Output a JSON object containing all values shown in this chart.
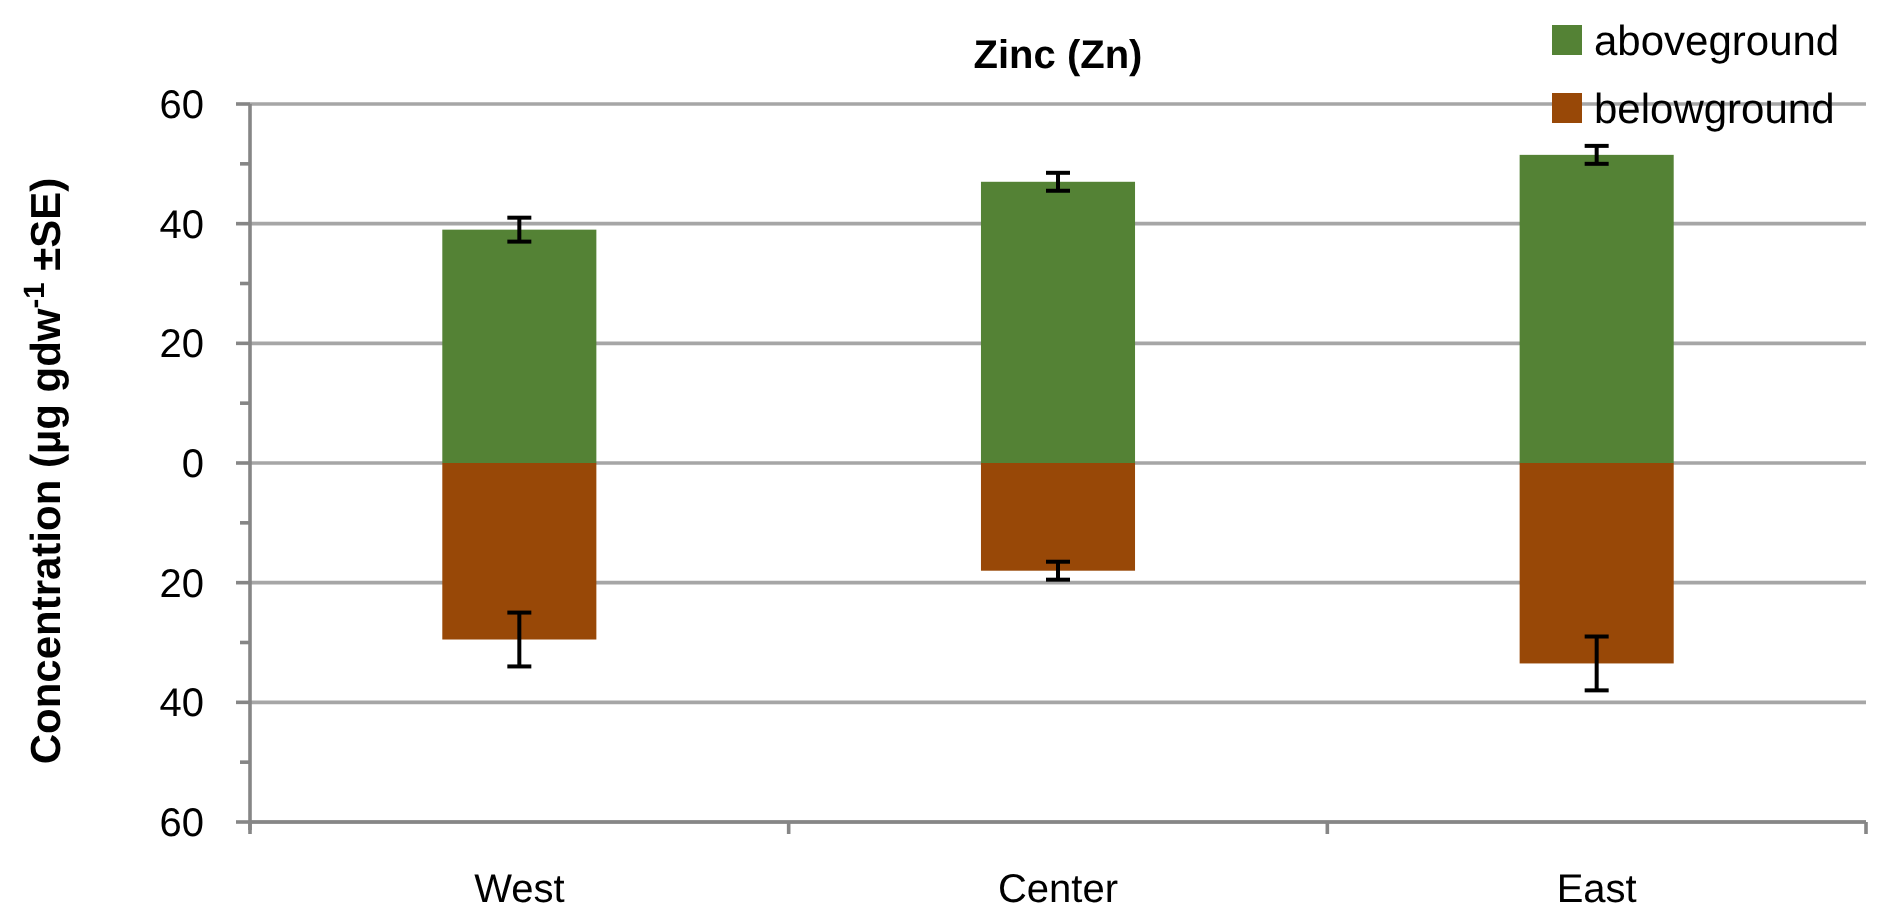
{
  "chart_data": {
    "type": "bar",
    "title": "Zinc (Zn)",
    "ylabel": "Concentration (µg gdw$^{-1}$ ±SE)",
    "categories": [
      "West",
      "Center",
      "East"
    ],
    "series": [
      {
        "name": "aboveground",
        "color": "#548235",
        "values": [
          39,
          47,
          51.5
        ],
        "errors": [
          2,
          1.5,
          1.5
        ]
      },
      {
        "name": "belowground",
        "color": "#984807",
        "values": [
          -29.5,
          -18,
          -33.5
        ],
        "errors": [
          4.5,
          1.5,
          4.5
        ]
      }
    ],
    "stacked": true,
    "ylim": [
      -60,
      60
    ],
    "yticks": [
      {
        "value": -60,
        "label": "60"
      },
      {
        "value": -50,
        "label": null
      },
      {
        "value": -40,
        "label": "40"
      },
      {
        "value": -30,
        "label": null
      },
      {
        "value": -20,
        "label": "20"
      },
      {
        "value": -10,
        "label": null
      },
      0,
      {
        "value": 10,
        "label": null
      },
      20,
      {
        "value": 30,
        "label": null
      },
      40,
      {
        "value": 50,
        "label": null
      },
      60
    ],
    "grid": "y",
    "legend": "top right"
  }
}
